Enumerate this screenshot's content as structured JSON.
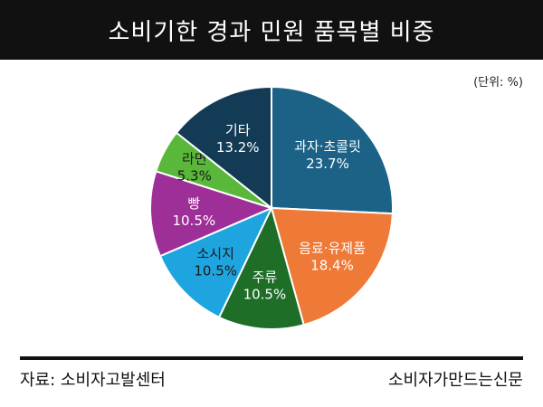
{
  "header": {
    "title": "소비기한 경과 민원 품목별 비중"
  },
  "unit_label": "(단위: %)",
  "footer": {
    "source": "자료: 소비자고발센터",
    "publisher": "소비자가만드는신문"
  },
  "chart_data": {
    "type": "pie",
    "title": "소비기한 경과 민원 품목별 비중",
    "unit": "%",
    "start_angle_deg": 0,
    "direction": "clockwise",
    "slices": [
      {
        "label": "과자·초콜릿",
        "value": 23.7,
        "display": "23.7%",
        "color": "#1b6286",
        "text_color": "#ffffff"
      },
      {
        "label": "음료·유제품",
        "value": 18.4,
        "display": "18.4%",
        "color": "#ef7a37",
        "text_color": "#ffffff"
      },
      {
        "label": "주류",
        "value": 10.5,
        "display": "10.5%",
        "color": "#1e6e28",
        "text_color": "#ffffff"
      },
      {
        "label": "소시지",
        "value": 10.5,
        "display": "10.5%",
        "color": "#1ea5e0",
        "text_color": "#1a1a1a"
      },
      {
        "label": "빵",
        "value": 10.5,
        "display": "10.5%",
        "color": "#9e2f98",
        "text_color": "#ffffff"
      },
      {
        "label": "라면",
        "value": 5.3,
        "display": "5.3%",
        "color": "#59b73a",
        "text_color": "#1a1a1a"
      },
      {
        "label": "기타",
        "value": 13.2,
        "display": "13.2%",
        "color": "#133b55",
        "text_color": "#ffffff"
      }
    ]
  }
}
